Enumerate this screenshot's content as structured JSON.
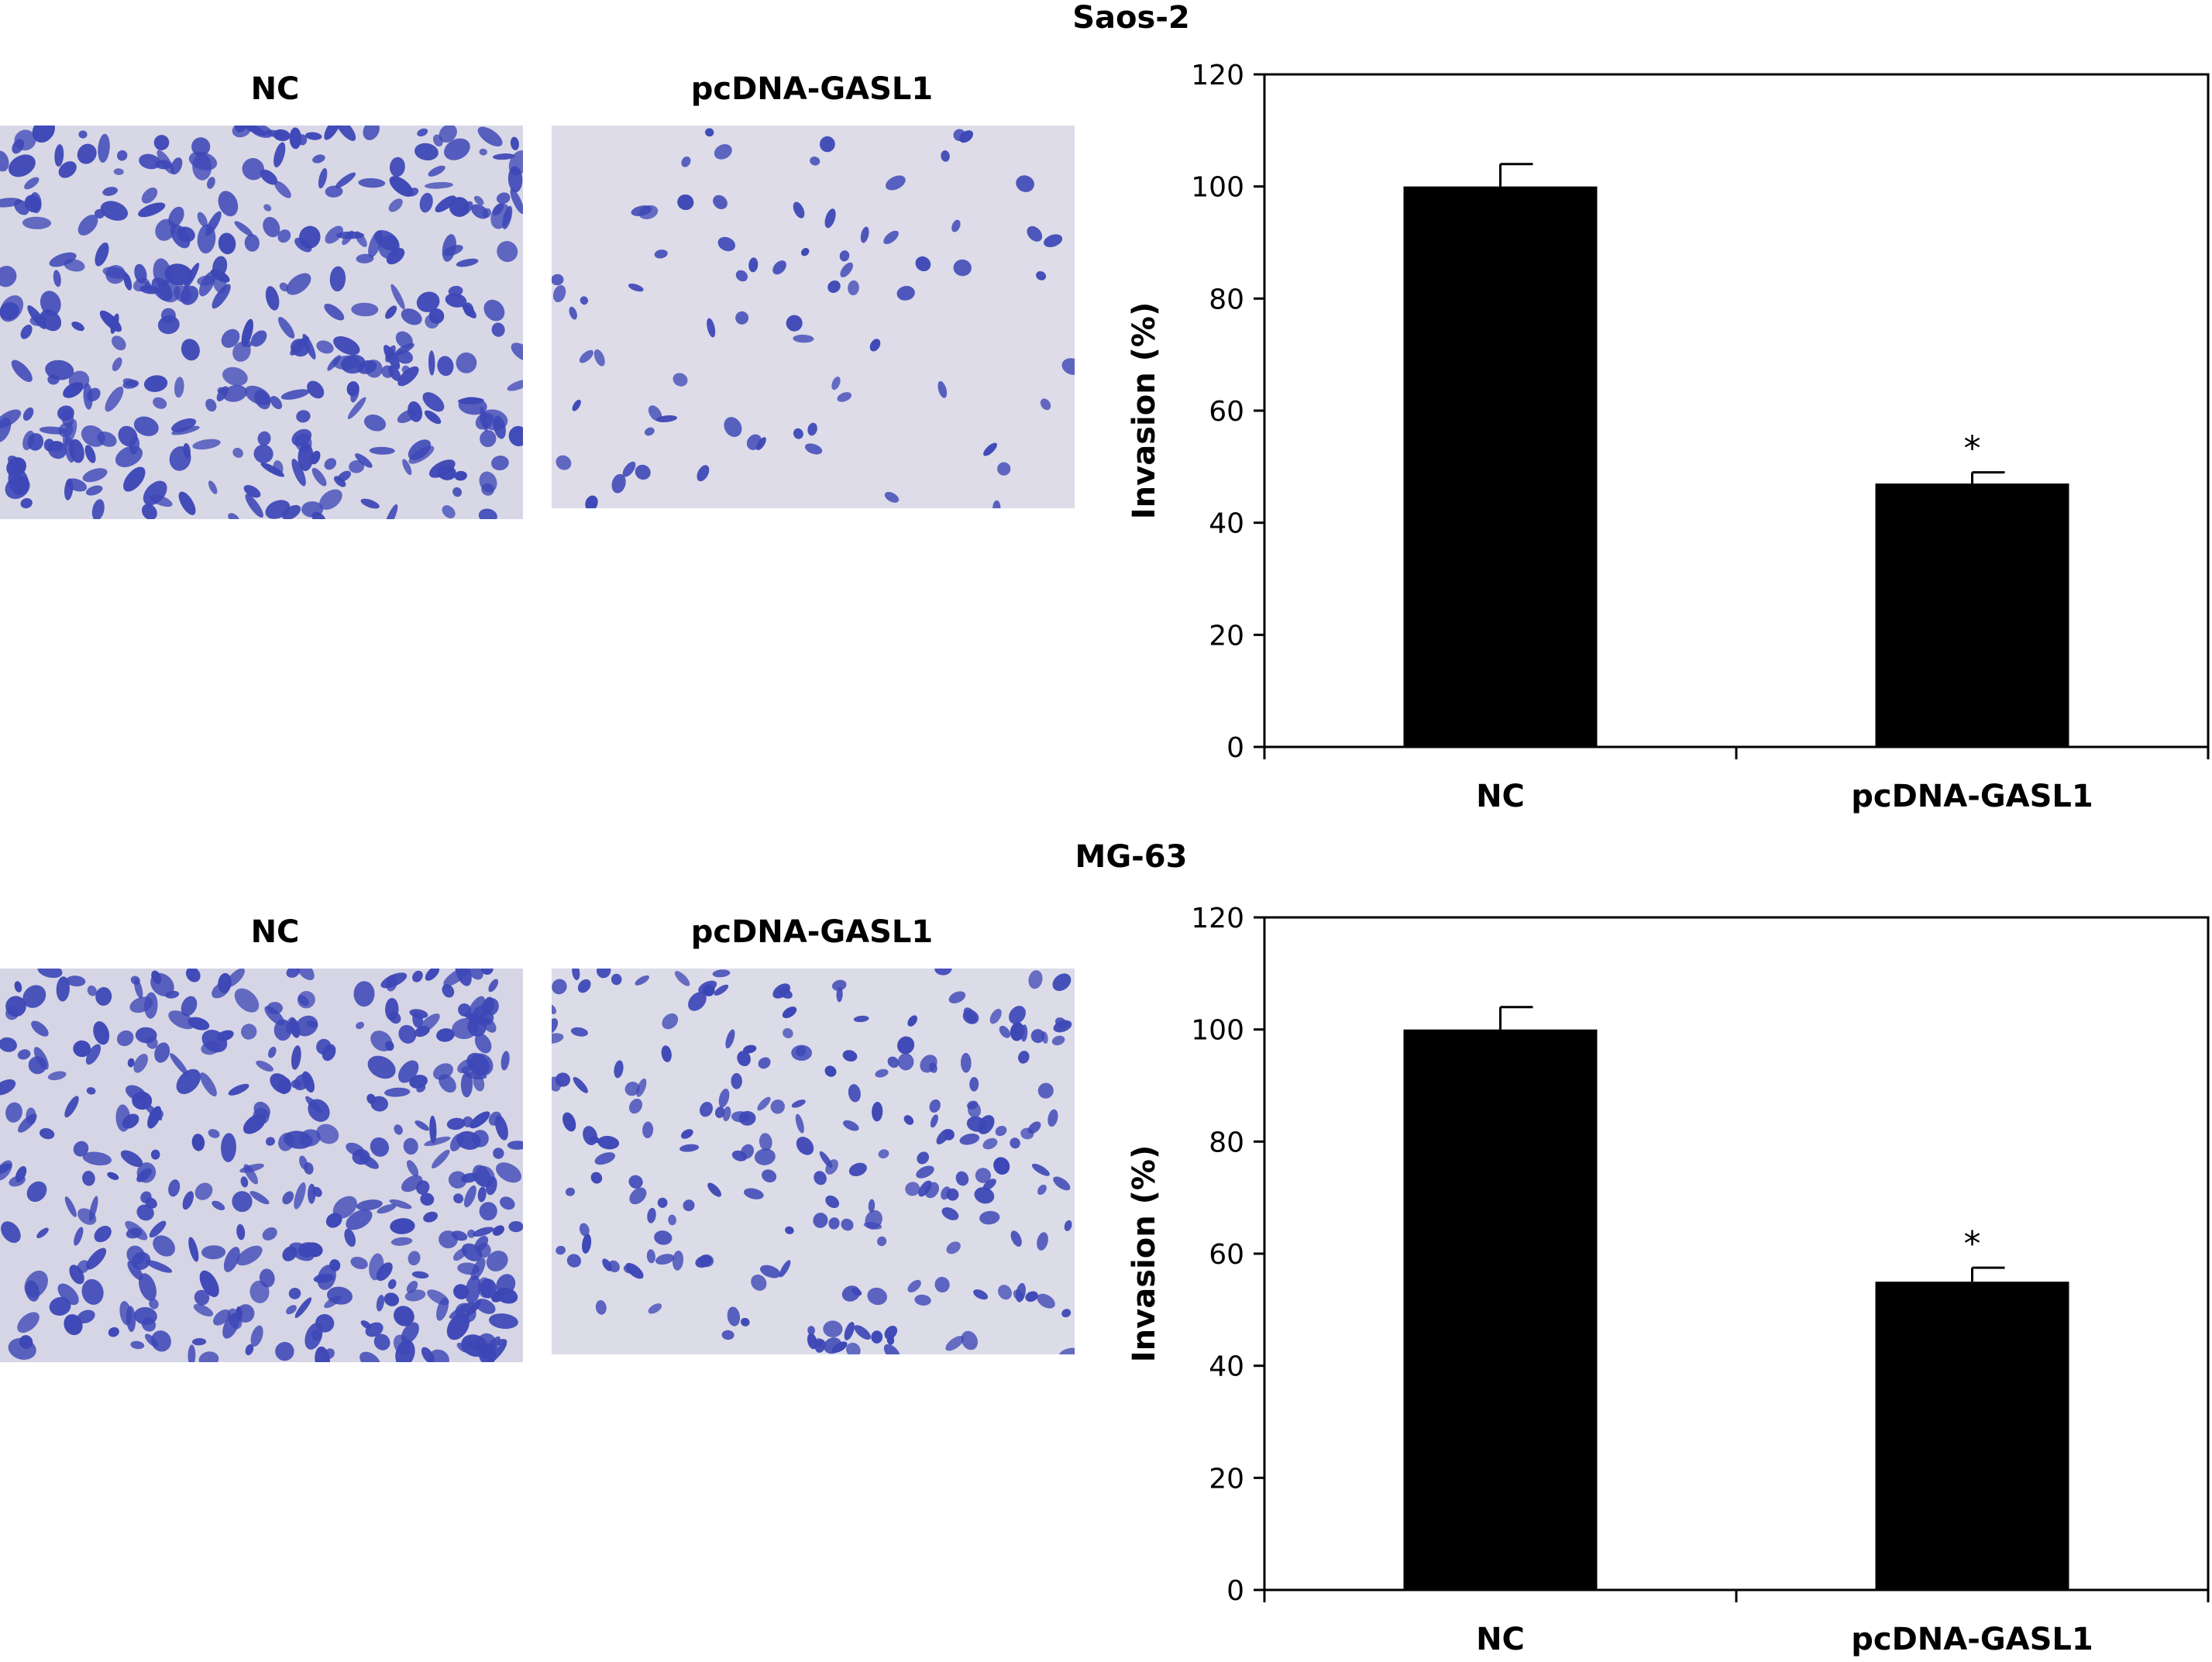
{
  "panels": [
    {
      "cell_line": "Saos-2",
      "image_labels": [
        "NC",
        "pcDNA-GASL1"
      ],
      "image_colors": {
        "background_nc": "#d8d7e6",
        "background_treated": "#dddce8",
        "stain": "#3d47b6"
      }
    },
    {
      "cell_line": "MG-63",
      "image_labels": [
        "NC",
        "pcDNA-GASL1"
      ],
      "image_colors": {
        "background_nc": "#d6d5e5",
        "background_treated": "#dcdbe8",
        "stain": "#3d47b6"
      }
    }
  ],
  "chart_data": [
    {
      "type": "bar",
      "categories": [
        "NC",
        "pcDNA-GASL1"
      ],
      "values": [
        100,
        47
      ],
      "errors": [
        4,
        2
      ],
      "annotations": [
        "",
        "*"
      ],
      "ylabel": "Invasion (%)",
      "ylim": [
        0,
        120
      ],
      "yticks": [
        0,
        20,
        40,
        60,
        80,
        100,
        120
      ],
      "bar_color": "#000000",
      "grid": false
    },
    {
      "type": "bar",
      "categories": [
        "NC",
        "pcDNA-GASL1"
      ],
      "values": [
        100,
        55
      ],
      "errors": [
        4,
        2.5
      ],
      "annotations": [
        "",
        "*"
      ],
      "ylabel": "Invasion (%)",
      "ylim": [
        0,
        120
      ],
      "yticks": [
        0,
        20,
        40,
        60,
        80,
        100,
        120
      ],
      "bar_color": "#000000",
      "grid": false
    }
  ]
}
